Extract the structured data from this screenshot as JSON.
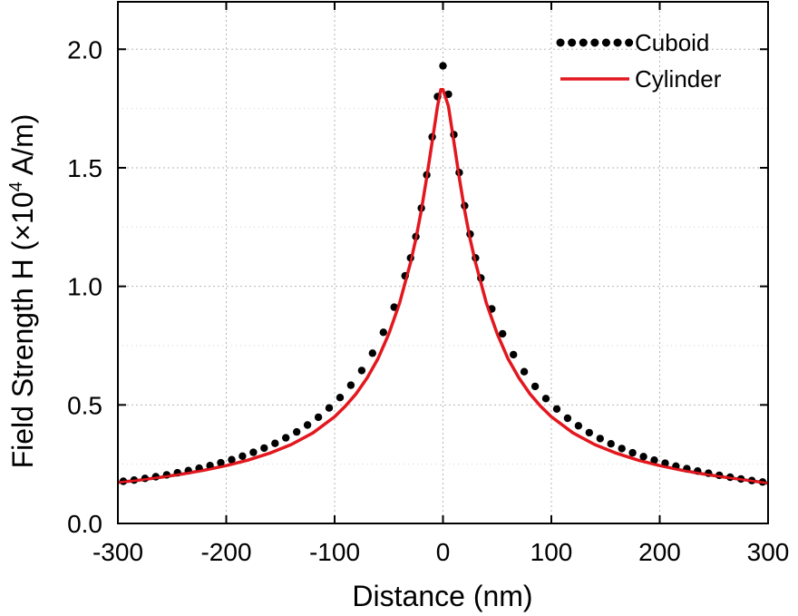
{
  "chart_data": {
    "type": "line",
    "title": "",
    "xlabel": "Distance (nm)",
    "ylabel": {
      "prefix": "Field Strength H (×10",
      "exponent": "4",
      "suffix": " A/m)"
    },
    "xlim": [
      -300,
      300
    ],
    "ylim": [
      0,
      2.2
    ],
    "xticks": [
      -300,
      -200,
      -100,
      0,
      100,
      200,
      300
    ],
    "xtick_labels": [
      "-300",
      "-200",
      "-100",
      "0",
      "100",
      "200",
      "300"
    ],
    "yticks": [
      0,
      0.5,
      1.0,
      1.5,
      2.0
    ],
    "ytick_labels": [
      "0.0",
      "0.5",
      "1.0",
      "1.5",
      "2.0"
    ],
    "grid": true,
    "legend_position": "top-right",
    "series": [
      {
        "name": "Cuboid",
        "style": "dotted",
        "color": "#000000",
        "x": [
          -295,
          -285,
          -275,
          -265,
          -255,
          -245,
          -235,
          -225,
          -215,
          -205,
          -195,
          -185,
          -175,
          -165,
          -155,
          -145,
          -135,
          -125,
          -115,
          -105,
          -95,
          -85,
          -75,
          -65,
          -55,
          -45,
          -35,
          -30,
          -25,
          -20,
          -15,
          -10,
          -5,
          0,
          5,
          10,
          15,
          20,
          25,
          30,
          35,
          45,
          55,
          65,
          75,
          85,
          95,
          105,
          115,
          125,
          135,
          145,
          155,
          165,
          175,
          185,
          195,
          205,
          215,
          225,
          235,
          245,
          255,
          265,
          275,
          285,
          295
        ],
        "y": [
          0.178,
          0.183,
          0.19,
          0.197,
          0.205,
          0.214,
          0.223,
          0.233,
          0.244,
          0.256,
          0.269,
          0.284,
          0.3,
          0.318,
          0.338,
          0.361,
          0.386,
          0.415,
          0.448,
          0.487,
          0.531,
          0.583,
          0.645,
          0.718,
          0.806,
          0.912,
          1.044,
          1.12,
          1.21,
          1.33,
          1.47,
          1.63,
          1.8,
          1.93,
          1.81,
          1.64,
          1.48,
          1.34,
          1.22,
          1.12,
          1.035,
          0.905,
          0.8,
          0.712,
          0.64,
          0.578,
          0.527,
          0.483,
          0.444,
          0.412,
          0.383,
          0.358,
          0.336,
          0.316,
          0.298,
          0.282,
          0.267,
          0.254,
          0.242,
          0.231,
          0.221,
          0.212,
          0.203,
          0.195,
          0.188,
          0.181,
          0.175
        ]
      },
      {
        "name": "Cylinder",
        "style": "solid",
        "color": "#e3171e",
        "x": [
          -300,
          -280,
          -260,
          -240,
          -220,
          -200,
          -180,
          -160,
          -140,
          -120,
          -100,
          -90,
          -80,
          -70,
          -60,
          -50,
          -40,
          -30,
          -25,
          -20,
          -15,
          -10,
          -5,
          -2,
          0,
          5,
          10,
          15,
          20,
          25,
          30,
          40,
          50,
          60,
          70,
          80,
          90,
          100,
          120,
          140,
          160,
          180,
          200,
          220,
          240,
          260,
          280,
          300
        ],
        "y": [
          0.173,
          0.183,
          0.195,
          0.209,
          0.225,
          0.244,
          0.267,
          0.296,
          0.333,
          0.382,
          0.45,
          0.495,
          0.548,
          0.614,
          0.695,
          0.8,
          0.93,
          1.1,
          1.2,
          1.32,
          1.46,
          1.61,
          1.76,
          1.83,
          1.83,
          1.76,
          1.61,
          1.46,
          1.32,
          1.2,
          1.1,
          0.93,
          0.8,
          0.695,
          0.614,
          0.548,
          0.495,
          0.45,
          0.382,
          0.333,
          0.296,
          0.267,
          0.244,
          0.225,
          0.209,
          0.195,
          0.183,
          0.17
        ]
      }
    ]
  }
}
